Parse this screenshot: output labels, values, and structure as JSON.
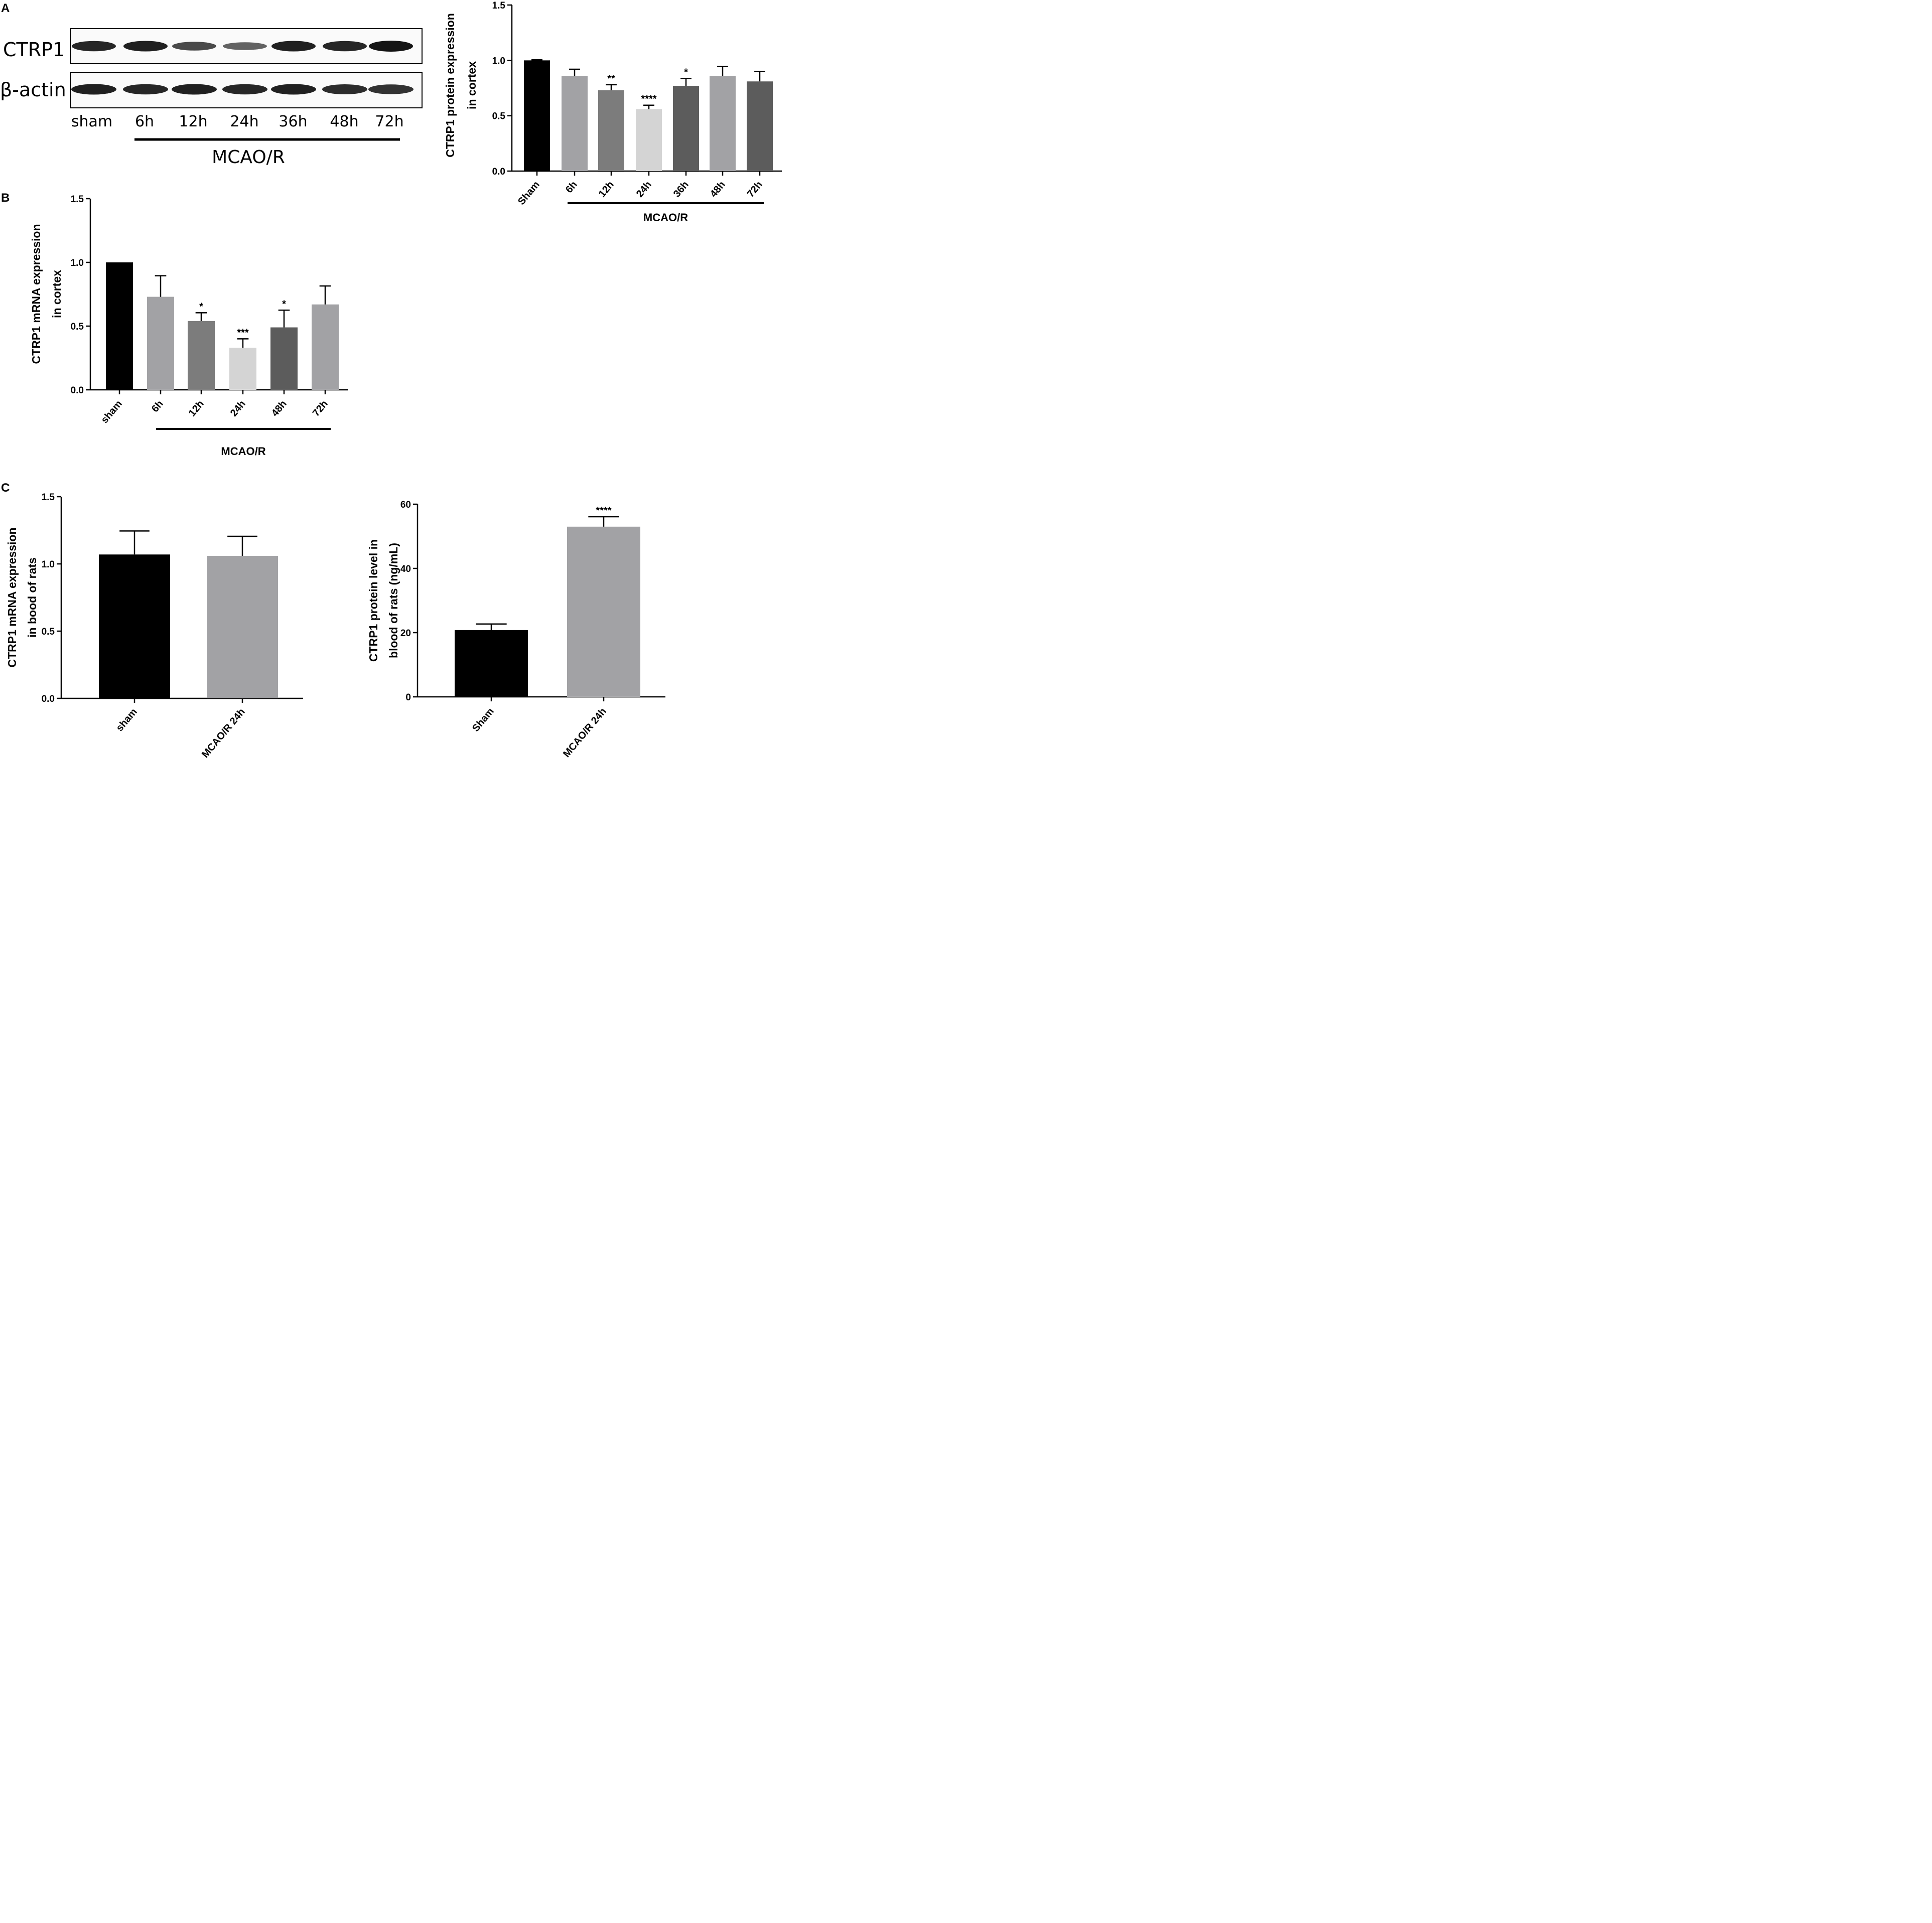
{
  "panels": {
    "a": "A",
    "b": "B",
    "c": "C"
  },
  "blot": {
    "row_labels": [
      "CTRP1",
      "β-actin"
    ],
    "lanes": [
      "sham",
      "6h",
      "12h",
      "24h",
      "36h",
      "48h",
      "72h"
    ],
    "group_label": "MCAO/R",
    "band_intensity": {
      "CTRP1": [
        0.85,
        0.9,
        0.55,
        0.35,
        0.9,
        0.85,
        1.0
      ],
      "beta_actin": [
        0.9,
        0.85,
        0.9,
        0.85,
        0.9,
        0.8,
        0.75
      ]
    }
  },
  "chart_data": [
    {
      "id": "protein-cortex",
      "type": "bar",
      "ylabel_lines": [
        "CTRP1 protein expression",
        "in cortex"
      ],
      "categories": [
        "Sham",
        "6h",
        "12h",
        "24h",
        "36h",
        "48h",
        "72h"
      ],
      "values": [
        1.0,
        0.86,
        0.73,
        0.56,
        0.77,
        0.86,
        0.81
      ],
      "errors": [
        0.005,
        0.06,
        0.05,
        0.035,
        0.065,
        0.085,
        0.09
      ],
      "significance": [
        "",
        "",
        "**",
        "****",
        "*",
        "",
        ""
      ],
      "colors": [
        "#000000",
        "#a2a2a5",
        "#7c7c7c",
        "#d4d4d4",
        "#5c5c5c",
        "#a2a2a5",
        "#5c5c5c"
      ],
      "ylim": [
        0,
        1.5
      ],
      "yticks": [
        "0.0",
        "0.5",
        "1.0",
        "1.5"
      ],
      "group_label": "MCAO/R"
    },
    {
      "id": "mrna-cortex",
      "type": "bar",
      "ylabel_lines": [
        "CTRP1 mRNA expression",
        "in cortex"
      ],
      "categories": [
        "sham",
        "6h",
        "12h",
        "24h",
        "48h",
        "72h"
      ],
      "values": [
        1.0,
        0.73,
        0.54,
        0.33,
        0.49,
        0.67
      ],
      "errors": [
        0.0,
        0.165,
        0.065,
        0.07,
        0.135,
        0.145
      ],
      "significance": [
        "",
        "",
        "*",
        "***",
        "*",
        ""
      ],
      "colors": [
        "#000000",
        "#a2a2a5",
        "#7c7c7c",
        "#d4d4d4",
        "#5c5c5c",
        "#a2a2a5"
      ],
      "ylim": [
        0,
        1.5
      ],
      "yticks": [
        "0.0",
        "0.5",
        "1.0",
        "1.5"
      ],
      "group_label": "MCAO/R"
    },
    {
      "id": "mrna-blood",
      "type": "bar",
      "ylabel_lines": [
        "CTRP1 mRNA expression",
        "in bood of rats"
      ],
      "categories": [
        "sham",
        "MCAO/R 24h"
      ],
      "values": [
        1.07,
        1.06
      ],
      "errors": [
        0.175,
        0.145
      ],
      "significance": [
        "",
        ""
      ],
      "colors": [
        "#000000",
        "#a2a2a5"
      ],
      "ylim": [
        0,
        1.5
      ],
      "yticks": [
        "0.0",
        "0.5",
        "1.0",
        "1.5"
      ],
      "group_label": ""
    },
    {
      "id": "protein-blood",
      "type": "bar",
      "ylabel_lines": [
        "CTRP1 protein level in",
        "blood of rats (ng/mL)"
      ],
      "categories": [
        "Sham",
        "MCAO/R 24h"
      ],
      "values": [
        20.8,
        53.0
      ],
      "errors": [
        1.9,
        3.1
      ],
      "significance": [
        "",
        "****"
      ],
      "colors": [
        "#000000",
        "#a2a2a5"
      ],
      "ylim": [
        0,
        60
      ],
      "yticks": [
        "0",
        "20",
        "40",
        "60"
      ],
      "group_label": ""
    }
  ]
}
